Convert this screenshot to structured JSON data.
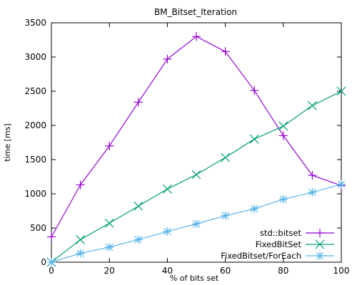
{
  "chart_data": {
    "type": "line",
    "title": "BM_Bitset_Iteration",
    "xlabel": "% of bits set",
    "ylabel": "time [ms]",
    "xlim": [
      0,
      100
    ],
    "ylim": [
      0,
      3500
    ],
    "x_ticks": [
      0,
      20,
      40,
      60,
      80,
      100
    ],
    "y_ticks": [
      0,
      500,
      1000,
      1500,
      2000,
      2500,
      3000,
      3500
    ],
    "grid": false,
    "legend_position": "bottom-right",
    "x": [
      0,
      10,
      20,
      30,
      40,
      50,
      60,
      70,
      80,
      90,
      100
    ],
    "series": [
      {
        "name": "std::bitset",
        "color": "#9400d3",
        "marker": "plus",
        "values": [
          370,
          1130,
          1700,
          2340,
          2970,
          3300,
          3080,
          2510,
          1850,
          1270,
          1120
        ]
      },
      {
        "name": "FixedBitSet",
        "color": "#009e73",
        "marker": "cross",
        "values": [
          0,
          330,
          570,
          820,
          1070,
          1280,
          1530,
          1800,
          1990,
          2290,
          2500
        ]
      },
      {
        "name": "FixedBitset/ForEach",
        "color": "#56b4e9",
        "marker": "asterisk",
        "values": [
          0,
          130,
          220,
          330,
          450,
          560,
          680,
          780,
          920,
          1020,
          1140
        ]
      }
    ]
  }
}
